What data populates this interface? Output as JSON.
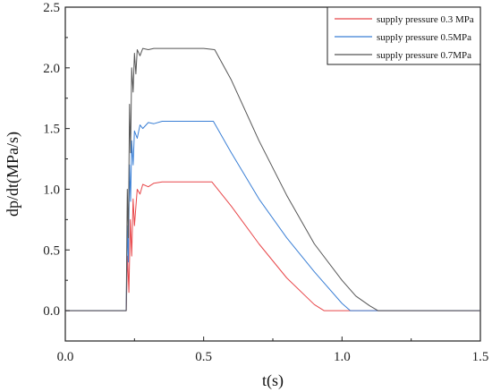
{
  "chart_data": {
    "type": "line",
    "xlabel": "t(s)",
    "ylabel": "dp/dt(MPa/s)",
    "xlim": [
      0,
      1.5
    ],
    "ylim": [
      -0.25,
      2.5
    ],
    "xticks": [
      "0.0",
      "0.5",
      "1.0",
      "1.5"
    ],
    "yticks": [
      "0.0",
      "0.5",
      "1.0",
      "1.5",
      "2.0",
      "2.5"
    ],
    "grid": false,
    "legend_position": "top-right",
    "series": [
      {
        "name": "supply pressure 0.3 MPa",
        "color": "#e8474a",
        "x": [
          0.0,
          0.22,
          0.225,
          0.23,
          0.235,
          0.24,
          0.245,
          0.25,
          0.26,
          0.27,
          0.28,
          0.3,
          0.32,
          0.35,
          0.4,
          0.45,
          0.5,
          0.53,
          0.6,
          0.7,
          0.8,
          0.9,
          0.935,
          1.5
        ],
        "y": [
          0.0,
          0.0,
          0.45,
          0.15,
          0.75,
          0.45,
          0.92,
          0.7,
          1.0,
          0.96,
          1.04,
          1.02,
          1.05,
          1.06,
          1.06,
          1.06,
          1.06,
          1.06,
          0.86,
          0.55,
          0.27,
          0.05,
          0.0,
          0.0
        ]
      },
      {
        "name": "supply pressure 0.5MPa",
        "color": "#3a7fd5",
        "x": [
          0.0,
          0.22,
          0.224,
          0.228,
          0.232,
          0.236,
          0.24,
          0.245,
          0.25,
          0.26,
          0.27,
          0.28,
          0.3,
          0.32,
          0.35,
          0.4,
          0.45,
          0.5,
          0.535,
          0.6,
          0.7,
          0.8,
          0.9,
          1.0,
          1.03,
          1.5
        ],
        "y": [
          0.0,
          0.0,
          0.7,
          0.4,
          1.2,
          0.9,
          1.4,
          1.2,
          1.48,
          1.42,
          1.53,
          1.5,
          1.55,
          1.54,
          1.56,
          1.56,
          1.56,
          1.56,
          1.56,
          1.3,
          0.92,
          0.6,
          0.32,
          0.06,
          0.0,
          0.0
        ]
      },
      {
        "name": "supply pressure 0.7MPa",
        "color": "#555555",
        "x": [
          0.0,
          0.22,
          0.224,
          0.228,
          0.232,
          0.236,
          0.24,
          0.245,
          0.25,
          0.255,
          0.26,
          0.27,
          0.28,
          0.3,
          0.32,
          0.35,
          0.4,
          0.45,
          0.5,
          0.54,
          0.6,
          0.7,
          0.8,
          0.9,
          1.0,
          1.05,
          1.1,
          1.13,
          1.5
        ],
        "y": [
          0.0,
          0.0,
          1.0,
          0.6,
          1.7,
          1.3,
          2.0,
          1.8,
          2.12,
          1.95,
          2.15,
          2.1,
          2.16,
          2.15,
          2.16,
          2.16,
          2.16,
          2.16,
          2.16,
          2.15,
          1.9,
          1.4,
          0.95,
          0.55,
          0.25,
          0.12,
          0.04,
          0.0,
          0.0
        ]
      }
    ]
  }
}
